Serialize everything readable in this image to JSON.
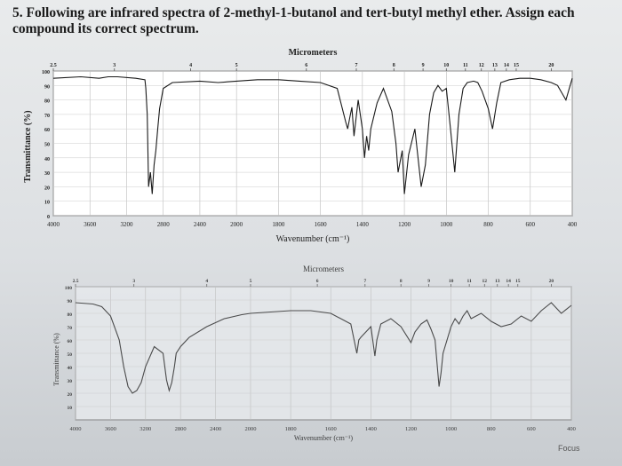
{
  "question": "5. Following are infrared spectra of 2-methyl-1-butanol and tert-butyl methyl ether. Assign each compound its correct spectrum.",
  "focus_label": "Focus",
  "chart_data": [
    {
      "type": "line",
      "top_axis_label": "Micrometers",
      "top_ticks": [
        "2.5",
        "3",
        "4",
        "5",
        "6",
        "7",
        "8",
        "9",
        "10",
        "11",
        "12",
        "13",
        "14",
        "15",
        "20"
      ],
      "top_tick_values": [
        4000,
        3333,
        2500,
        2000,
        1667,
        1429,
        1250,
        1111,
        1000,
        909,
        833,
        769,
        714,
        667,
        500
      ],
      "xlabel": "Wavenumber (cm⁻¹)",
      "x_ticks": [
        "4000",
        "3600",
        "3200",
        "2800",
        "2400",
        "2000",
        "1800",
        "1600",
        "1400",
        "1200",
        "1000",
        "800",
        "600",
        "400"
      ],
      "ylabel": "Transmittance (%)",
      "y_ticks": [
        "100",
        "90",
        "80",
        "70",
        "60",
        "50",
        "40",
        "30",
        "20",
        "10",
        "0"
      ],
      "ylim": [
        0,
        100
      ],
      "x": [
        4000,
        3700,
        3500,
        3400,
        3300,
        3100,
        3000,
        2990,
        2975,
        2960,
        2940,
        2920,
        2900,
        2880,
        2860,
        2840,
        2800,
        2700,
        2400,
        2200,
        2000,
        1900,
        1800,
        1700,
        1600,
        1520,
        1480,
        1470,
        1460,
        1450,
        1440,
        1420,
        1400,
        1390,
        1380,
        1370,
        1360,
        1330,
        1300,
        1260,
        1240,
        1230,
        1210,
        1200,
        1180,
        1150,
        1120,
        1100,
        1080,
        1060,
        1040,
        1020,
        1000,
        980,
        960,
        940,
        920,
        900,
        870,
        850,
        830,
        800,
        780,
        760,
        740,
        700,
        650,
        600,
        550,
        500,
        470,
        450,
        430,
        400
      ],
      "y": [
        95,
        96,
        95,
        96,
        96,
        95,
        94,
        88,
        70,
        20,
        30,
        15,
        35,
        45,
        60,
        74,
        88,
        92,
        93,
        92,
        93,
        94,
        94,
        93,
        92,
        88,
        65,
        60,
        68,
        75,
        55,
        80,
        60,
        40,
        55,
        45,
        60,
        78,
        88,
        72,
        50,
        30,
        45,
        15,
        42,
        60,
        20,
        35,
        70,
        85,
        90,
        86,
        88,
        60,
        30,
        70,
        88,
        92,
        93,
        92,
        86,
        74,
        60,
        78,
        92,
        94,
        95,
        95,
        94,
        92,
        90,
        85,
        80,
        95
      ]
    },
    {
      "type": "line",
      "top_axis_label": "Micrometers",
      "top_ticks": [
        "2.5",
        "3",
        "4",
        "5",
        "6",
        "7",
        "8",
        "9",
        "10",
        "11",
        "12",
        "13",
        "14",
        "15",
        "20"
      ],
      "top_tick_values": [
        4000,
        3333,
        2500,
        2000,
        1667,
        1429,
        1250,
        1111,
        1000,
        909,
        833,
        769,
        714,
        667,
        500
      ],
      "xlabel": "Wavenumber (cm⁻¹)",
      "x_ticks": [
        "4000",
        "3600",
        "3200",
        "2800",
        "2400",
        "2000",
        "1800",
        "1600",
        "1400",
        "1200",
        "1000",
        "800",
        "600",
        "400"
      ],
      "ylabel": "Transmittance (%)",
      "y_ticks": [
        "100",
        "90",
        "80",
        "70",
        "60",
        "50",
        "40",
        "30",
        "20",
        "10"
      ],
      "ylim": [
        0,
        100
      ],
      "x": [
        4000,
        3800,
        3700,
        3600,
        3500,
        3450,
        3400,
        3350,
        3300,
        3250,
        3200,
        3100,
        3000,
        2960,
        2930,
        2900,
        2870,
        2850,
        2800,
        2700,
        2500,
        2300,
        2100,
        2000,
        1900,
        1800,
        1700,
        1600,
        1500,
        1470,
        1460,
        1450,
        1400,
        1380,
        1370,
        1350,
        1300,
        1250,
        1200,
        1180,
        1150,
        1120,
        1100,
        1080,
        1060,
        1050,
        1040,
        1000,
        980,
        960,
        940,
        920,
        900,
        850,
        800,
        750,
        700,
        650,
        600,
        550,
        500,
        450,
        400
      ],
      "y": [
        88,
        87,
        85,
        78,
        60,
        40,
        25,
        20,
        22,
        28,
        40,
        55,
        50,
        30,
        22,
        28,
        40,
        50,
        55,
        62,
        70,
        76,
        79,
        80,
        81,
        82,
        82,
        80,
        72,
        50,
        60,
        62,
        70,
        48,
        60,
        72,
        76,
        70,
        58,
        66,
        72,
        75,
        68,
        60,
        25,
        35,
        50,
        70,
        76,
        72,
        78,
        82,
        76,
        80,
        74,
        70,
        72,
        78,
        74,
        82,
        88,
        80,
        86
      ]
    }
  ]
}
